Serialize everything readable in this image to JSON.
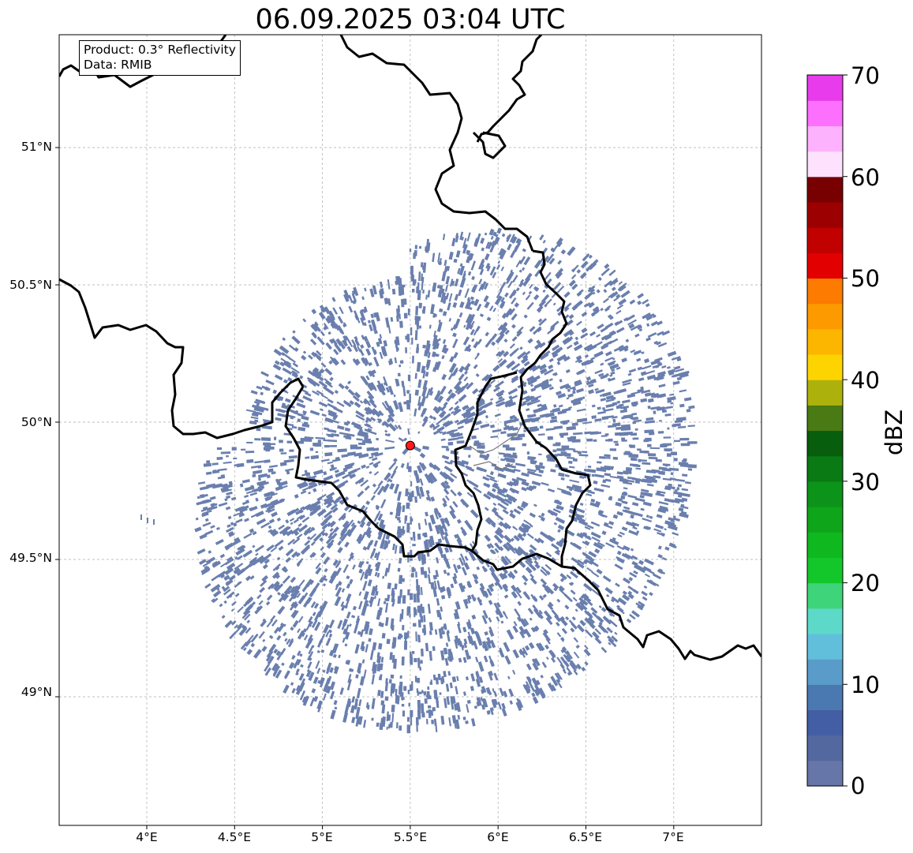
{
  "title": "06.09.2025 03:04 UTC",
  "info_box": {
    "product_line": "Product: 0.3° Reflectivity",
    "data_line": "Data: RMIB"
  },
  "map": {
    "extent": {
      "lon_min": 3.5,
      "lon_max": 7.5,
      "lat_min": 48.55,
      "lat_max": 51.4
    },
    "lat_labels": [
      "51°N",
      "50.5°N",
      "50°N",
      "49.5°N",
      "49°N"
    ],
    "lon_labels": [
      "4°E",
      "4.5°E",
      "5°E",
      "5.5°E",
      "6°E",
      "6.5°E",
      "7°E"
    ],
    "radar_site": {
      "lon": 5.5,
      "lat": 49.915,
      "color": "#ff1a1a"
    },
    "echo_color": "#6a7fae",
    "gridlines": true
  },
  "colorbar": {
    "label": "dBZ",
    "tick_labels": [
      "0",
      "10",
      "20",
      "30",
      "40",
      "50",
      "60",
      "70"
    ],
    "min": 0,
    "max": 70,
    "step": 2.5,
    "colors": [
      "#6776a8",
      "#5468a0",
      "#435ea4",
      "#4a79b1",
      "#5a9cc9",
      "#62bfdc",
      "#5dd9c9",
      "#3ed47a",
      "#13c72a",
      "#10b820",
      "#0ea51a",
      "#0c9319",
      "#097a14",
      "#075e0d",
      "#497a14",
      "#adb10c",
      "#fdd400",
      "#fcb600",
      "#fd9a00",
      "#fd7b00",
      "#e20000",
      "#c10000",
      "#9c0000",
      "#780000",
      "#fde1fd",
      "#fdb2fd",
      "#fd6ffd",
      "#e83cec"
    ]
  }
}
